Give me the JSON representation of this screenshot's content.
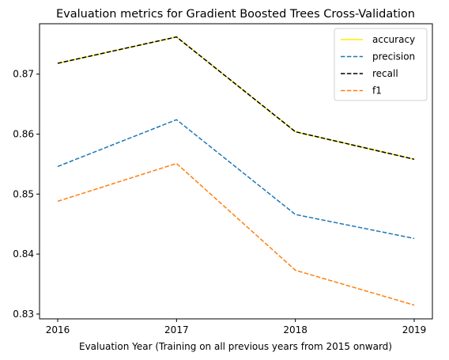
{
  "chart_data": {
    "type": "line",
    "title": "Evaluation metrics for Gradient Boosted Trees Cross-Validation",
    "xlabel": "Evaluation Year (Training on all previous years from 2015 onward)",
    "ylabel": "",
    "x": [
      "2016",
      "2017",
      "2018",
      "2019"
    ],
    "ylim": [
      0.8292,
      0.8784
    ],
    "yticks": [
      0.83,
      0.84,
      0.85,
      0.86,
      0.87
    ],
    "ytick_labels": [
      "0.83",
      "0.84",
      "0.85",
      "0.86",
      "0.87"
    ],
    "grid": false,
    "legend": "top-right",
    "series": [
      {
        "name": "accuracy",
        "values": [
          0.8718,
          0.8762,
          0.8604,
          0.8558
        ],
        "color": "#ffee00",
        "style": "solid"
      },
      {
        "name": "precision",
        "values": [
          0.8546,
          0.8624,
          0.8466,
          0.8426
        ],
        "color": "#1f77b4",
        "style": "dashed"
      },
      {
        "name": "recall",
        "values": [
          0.8718,
          0.8762,
          0.8604,
          0.8558
        ],
        "color": "#000000",
        "style": "dashed"
      },
      {
        "name": "f1",
        "values": [
          0.8488,
          0.8551,
          0.8373,
          0.8315
        ],
        "color": "#ff7f0e",
        "style": "dashed"
      }
    ]
  }
}
